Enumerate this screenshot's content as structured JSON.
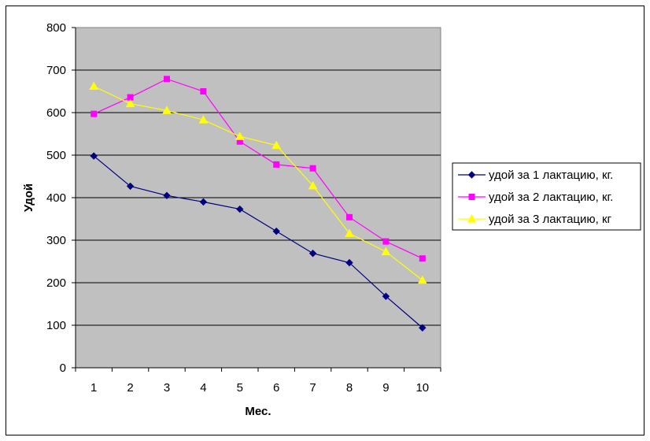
{
  "chart_data": {
    "type": "line",
    "title": "",
    "xlabel": "Мес.",
    "ylabel": "Удой",
    "x": [
      1,
      2,
      3,
      4,
      5,
      6,
      7,
      8,
      9,
      10
    ],
    "x_tick_labels": [
      "1",
      "2",
      "3",
      "4",
      "5",
      "6",
      "7",
      "8",
      "9",
      "10"
    ],
    "ylim": [
      0,
      800
    ],
    "y_ticks": [
      0,
      100,
      200,
      300,
      400,
      500,
      600,
      700,
      800
    ],
    "y_tick_labels": [
      "0",
      "100",
      "200",
      "300",
      "400",
      "500",
      "600",
      "700",
      "800"
    ],
    "grid": "horizontal major",
    "plot_background": "#c0c0c0",
    "legend_position": "right",
    "series": [
      {
        "name": "удой за 1 лактацию, кг.",
        "color": "#000080",
        "marker": "diamond",
        "values": [
          498,
          427,
          405,
          390,
          373,
          321,
          269,
          247,
          168,
          94
        ]
      },
      {
        "name": "удой за 2 лактацию, кг.",
        "color": "#ff00ff",
        "marker": "square",
        "values": [
          597,
          636,
          679,
          650,
          532,
          478,
          469,
          354,
          297,
          257
        ]
      },
      {
        "name": "удой за 3 лактацию, кг",
        "color": "#ffff00",
        "marker": "triangle",
        "values": [
          662,
          621,
          605,
          583,
          544,
          523,
          428,
          316,
          273,
          206
        ]
      }
    ]
  }
}
